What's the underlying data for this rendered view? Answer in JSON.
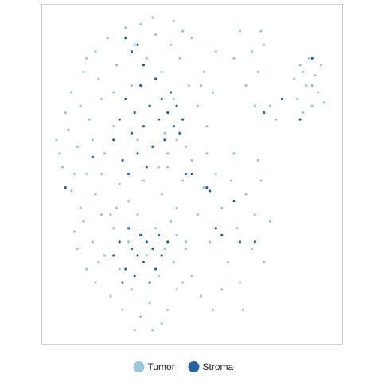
{
  "chart_data": {
    "type": "scatter",
    "xlim": [
      0,
      100
    ],
    "ylim": [
      0,
      100
    ],
    "legend": "bottom",
    "series": [
      {
        "name": "Tumor",
        "color": "#9ac6df",
        "x": [
          5,
          7,
          8,
          10,
          10,
          12,
          13,
          14,
          15,
          16,
          18,
          18,
          20,
          21,
          22,
          23,
          25,
          26,
          28,
          30,
          31,
          33,
          35,
          36,
          38,
          40,
          41,
          43,
          44,
          46,
          47,
          49,
          50,
          52,
          54,
          55,
          57,
          58,
          9,
          11,
          17,
          19,
          24,
          27,
          29,
          32,
          34,
          39,
          42,
          45,
          48,
          13,
          6,
          37,
          44,
          53,
          20,
          24,
          15,
          47,
          11,
          12,
          14,
          15,
          17,
          18,
          20,
          21,
          23,
          24,
          26,
          27,
          29,
          30,
          32,
          33,
          35,
          36,
          38,
          39,
          41,
          42,
          44,
          45,
          47,
          48,
          37,
          40,
          25,
          31,
          19,
          43,
          40,
          42,
          45,
          47,
          50,
          52,
          54,
          56,
          58,
          60,
          62,
          63,
          65,
          66,
          68,
          70,
          71,
          73,
          74,
          76,
          48,
          50,
          53,
          57,
          60,
          55,
          64,
          72,
          67,
          45,
          84,
          85,
          86,
          87,
          88,
          89,
          90,
          91,
          92,
          93,
          94,
          87,
          90,
          66,
          70,
          72,
          68,
          74,
          76,
          78,
          64,
          71,
          73
        ],
        "values": [
          60,
          52,
          68,
          45,
          74,
          58,
          40,
          80,
          50,
          66,
          86,
          44,
          72,
          56,
          90,
          38,
          82,
          47,
          93,
          76,
          88,
          94,
          84,
          70,
          91,
          80,
          62,
          88,
          72,
          84,
          66,
          76,
          90,
          70,
          80,
          64,
          74,
          86,
          63,
          50,
          60,
          78,
          64,
          54,
          42,
          60,
          48,
          52,
          56,
          60,
          58,
          70,
          56,
          96,
          95,
          76,
          50,
          74,
          84,
          92,
          33,
          28,
          36,
          22,
          30,
          18,
          38,
          26,
          14,
          34,
          22,
          10,
          30,
          16,
          38,
          8,
          26,
          12,
          34,
          20,
          28,
          10,
          24,
          32,
          18,
          28,
          4,
          6,
          40,
          4,
          24,
          36,
          44,
          52,
          40,
          48,
          54,
          38,
          46,
          30,
          50,
          40,
          24,
          48,
          34,
          18,
          44,
          28,
          38,
          48,
          24,
          36,
          30,
          20,
          14,
          10,
          16,
          56,
          56,
          54,
          10,
          16,
          78,
          72,
          82,
          68,
          76,
          84,
          70,
          79,
          74,
          82,
          71,
          80,
          76,
          92,
          86,
          80,
          76,
          88,
          70,
          66,
          84,
          70,
          92
        ]
      },
      {
        "name": "Stroma",
        "color": "#1f63a8",
        "x": [
          24,
          26,
          27,
          28,
          29,
          30,
          31,
          32,
          33,
          34,
          35,
          36,
          37,
          38,
          39,
          40,
          41,
          42,
          43,
          44,
          45,
          46,
          47,
          30,
          32,
          28,
          34,
          17,
          8,
          24,
          26,
          28,
          29,
          30,
          31,
          32,
          33,
          34,
          35,
          36,
          37,
          38,
          39,
          40,
          42,
          27,
          55,
          56,
          58,
          60,
          64,
          66,
          71,
          48,
          50,
          90,
          74,
          80,
          86
        ],
        "values": [
          60,
          66,
          54,
          72,
          50,
          62,
          68,
          56,
          76,
          64,
          52,
          70,
          58,
          78,
          66,
          72,
          60,
          68,
          74,
          64,
          70,
          62,
          66,
          86,
          88,
          90,
          82,
          55,
          46,
          26,
          30,
          22,
          34,
          28,
          20,
          26,
          32,
          24,
          30,
          18,
          28,
          22,
          32,
          26,
          30,
          18,
          46,
          45,
          34,
          32,
          42,
          30,
          30,
          50,
          50,
          84,
          68,
          72,
          66
        ]
      }
    ]
  }
}
